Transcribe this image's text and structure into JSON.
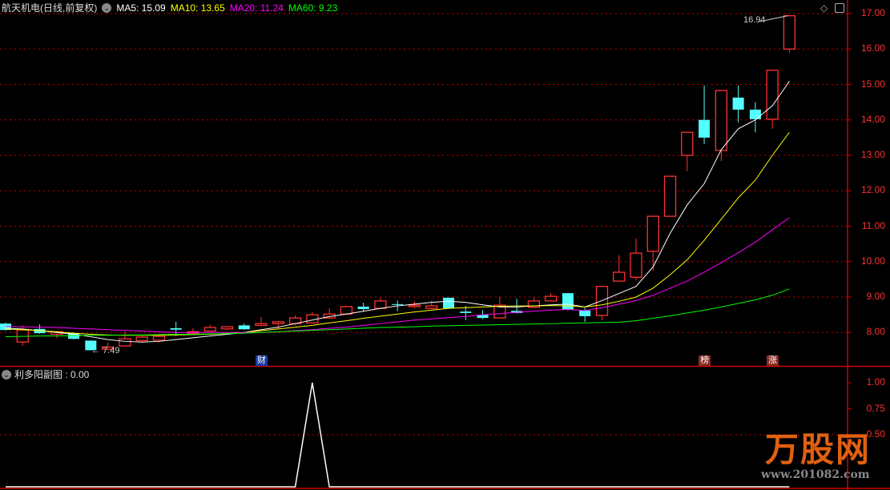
{
  "header": {
    "title": "航天机电(日线,前复权)",
    "ma5": "MA5: 15.09",
    "ma10": "MA10: 13.65",
    "ma20": "MA20: 11.24",
    "ma60": "MA60: 9.23"
  },
  "sub_indicator": {
    "label": "利多阳副图 : 0.00"
  },
  "icons": {
    "diamond": "diamond-icon",
    "panel_toggle": "panel-toggle-icon",
    "chevron": "chevron-down-icon"
  },
  "colors": {
    "up": "#FF3232",
    "down": "#54FFFF",
    "ma5": "#FFFFFF",
    "ma10": "#FFFF00",
    "ma20": "#FF00FF",
    "ma60": "#00FF00",
    "grid": "#CC0000",
    "axis": "#CC0000"
  },
  "annotations": {
    "low_label": "7.49",
    "high_label": "16.94"
  },
  "event_tags": [
    {
      "text": "财",
      "candle": 15,
      "color": "#1a3aa0"
    },
    {
      "text": "榜",
      "candle": 41,
      "color": "#8a2a20"
    },
    {
      "text": "涨",
      "candle": 45,
      "color": "#8a2a20"
    }
  ],
  "logo": {
    "text": "万股网",
    "url": "www.201082.com"
  },
  "chart_data": [
    {
      "type": "candlestick",
      "yaxis_ticks": [
        "17.00",
        "16.00",
        "15.00",
        "14.00",
        "13.00",
        "12.00",
        "11.00",
        "10.00",
        "9.00",
        "8.00"
      ],
      "ylim": [
        7.0,
        17.3
      ],
      "grid": true,
      "ohlc": [
        [
          8.25,
          8.28,
          8.05,
          8.07
        ],
        [
          7.73,
          8.2,
          7.62,
          8.07
        ],
        [
          8.1,
          8.23,
          7.96,
          7.98
        ],
        [
          7.95,
          8.05,
          7.84,
          8.02
        ],
        [
          7.98,
          8.0,
          7.8,
          7.82
        ],
        [
          7.77,
          7.78,
          7.49,
          7.5
        ],
        [
          7.53,
          7.71,
          7.5,
          7.59
        ],
        [
          7.62,
          8.03,
          7.6,
          7.82
        ],
        [
          7.77,
          7.9,
          7.74,
          7.87
        ],
        [
          7.78,
          7.93,
          7.72,
          7.89
        ],
        [
          8.12,
          8.3,
          7.9,
          8.08
        ],
        [
          7.98,
          8.12,
          7.96,
          8.02
        ],
        [
          8.04,
          8.22,
          8.0,
          8.14
        ],
        [
          8.1,
          8.18,
          8.08,
          8.16
        ],
        [
          8.2,
          8.25,
          8.07,
          8.09
        ],
        [
          8.2,
          8.44,
          8.18,
          8.25
        ],
        [
          8.25,
          8.33,
          8.11,
          8.3
        ],
        [
          8.25,
          8.48,
          8.2,
          8.41
        ],
        [
          8.27,
          8.57,
          8.25,
          8.5
        ],
        [
          8.41,
          8.68,
          8.4,
          8.52
        ],
        [
          8.52,
          8.75,
          8.5,
          8.73
        ],
        [
          8.73,
          8.84,
          8.6,
          8.66
        ],
        [
          8.68,
          8.98,
          8.66,
          8.89
        ],
        [
          8.8,
          8.9,
          8.6,
          8.79
        ],
        [
          8.73,
          8.88,
          8.68,
          8.77
        ],
        [
          8.68,
          8.9,
          8.66,
          8.75
        ],
        [
          8.98,
          8.99,
          8.66,
          8.68
        ],
        [
          8.59,
          8.75,
          8.35,
          8.55
        ],
        [
          8.5,
          8.63,
          8.38,
          8.41
        ],
        [
          8.41,
          9.0,
          8.4,
          8.77
        ],
        [
          8.61,
          8.95,
          8.53,
          8.55
        ],
        [
          8.71,
          8.98,
          8.69,
          8.89
        ],
        [
          8.89,
          9.11,
          8.87,
          9.02
        ],
        [
          9.11,
          9.12,
          8.62,
          8.64
        ],
        [
          8.62,
          8.7,
          8.3,
          8.46
        ],
        [
          8.48,
          9.32,
          8.34,
          9.3
        ],
        [
          9.45,
          10.18,
          9.44,
          9.7
        ],
        [
          9.56,
          10.65,
          9.47,
          10.24
        ],
        [
          10.29,
          11.3,
          9.75,
          11.28
        ],
        [
          11.28,
          12.42,
          11.27,
          12.41
        ],
        [
          13.0,
          13.66,
          12.55,
          13.65
        ],
        [
          14.0,
          14.97,
          13.32,
          13.5
        ],
        [
          13.14,
          14.84,
          12.84,
          14.83
        ],
        [
          14.63,
          14.97,
          13.93,
          14.29
        ],
        [
          14.29,
          14.5,
          13.65,
          14.02
        ],
        [
          14.02,
          15.41,
          13.75,
          15.4
        ],
        [
          16.0,
          16.94,
          15.9,
          16.94
        ]
      ],
      "series": [
        {
          "name": "MA5",
          "values": [
            8.12,
            8.1,
            8.05,
            8.0,
            7.95,
            7.88,
            7.8,
            7.75,
            7.73,
            7.75,
            7.8,
            7.85,
            7.9,
            7.95,
            8.0,
            8.08,
            8.15,
            8.25,
            8.35,
            8.45,
            8.52,
            8.6,
            8.68,
            8.75,
            8.8,
            8.85,
            8.88,
            8.85,
            8.78,
            8.72,
            8.72,
            8.75,
            8.78,
            8.8,
            8.72,
            8.9,
            9.1,
            9.3,
            9.85,
            10.8,
            11.6,
            12.2,
            13.16,
            13.75,
            14.0,
            14.4,
            15.09
          ]
        },
        {
          "name": "MA10",
          "values": [
            8.1,
            8.08,
            8.05,
            8.02,
            7.98,
            7.95,
            7.93,
            7.92,
            7.92,
            7.92,
            7.93,
            7.94,
            7.95,
            7.97,
            8.0,
            8.05,
            8.1,
            8.15,
            8.2,
            8.27,
            8.33,
            8.4,
            8.46,
            8.52,
            8.58,
            8.63,
            8.68,
            8.7,
            8.72,
            8.74,
            8.75,
            8.75,
            8.76,
            8.75,
            8.72,
            8.78,
            8.88,
            9.0,
            9.25,
            9.63,
            10.05,
            10.6,
            11.2,
            11.8,
            12.3,
            13.0,
            13.65
          ]
        },
        {
          "name": "MA20",
          "values": [
            8.17,
            8.16,
            8.15,
            8.14,
            8.12,
            8.1,
            8.08,
            8.06,
            8.04,
            8.02,
            8.0,
            8.0,
            8.0,
            8.0,
            8.0,
            8.0,
            8.02,
            8.05,
            8.08,
            8.12,
            8.15,
            8.2,
            8.25,
            8.3,
            8.35,
            8.38,
            8.42,
            8.45,
            8.5,
            8.53,
            8.57,
            8.6,
            8.63,
            8.65,
            8.62,
            8.7,
            8.8,
            8.9,
            9.05,
            9.25,
            9.45,
            9.7,
            9.97,
            10.25,
            10.55,
            10.9,
            11.24
          ]
        },
        {
          "name": "MA60",
          "values": [
            7.88,
            7.89,
            7.9,
            7.9,
            7.91,
            7.92,
            7.92,
            7.93,
            7.93,
            7.94,
            7.95,
            7.95,
            7.96,
            7.97,
            7.98,
            8.0,
            8.02,
            8.04,
            8.06,
            8.08,
            8.1,
            8.12,
            8.14,
            8.15,
            8.16,
            8.18,
            8.19,
            8.2,
            8.21,
            8.22,
            8.23,
            8.24,
            8.25,
            8.26,
            8.27,
            8.28,
            8.29,
            8.33,
            8.4,
            8.47,
            8.55,
            8.63,
            8.72,
            8.82,
            8.92,
            9.05,
            9.23
          ]
        }
      ]
    },
    {
      "type": "line",
      "yaxis_ticks": [
        "1.00",
        "0.75",
        "0.50"
      ],
      "ylim": [
        0,
        1.1
      ],
      "series": [
        {
          "name": "利多阳副图",
          "values": [
            0,
            0,
            0,
            0,
            0,
            0,
            0,
            0,
            0,
            0,
            0,
            0,
            0,
            0,
            0,
            0,
            0,
            0,
            1,
            0,
            0,
            0,
            0,
            0,
            0,
            0,
            0,
            0,
            0,
            0,
            0,
            0,
            0,
            0,
            0,
            0,
            0,
            0,
            0,
            0,
            0,
            0,
            0,
            0,
            0,
            0,
            0
          ]
        }
      ]
    }
  ]
}
